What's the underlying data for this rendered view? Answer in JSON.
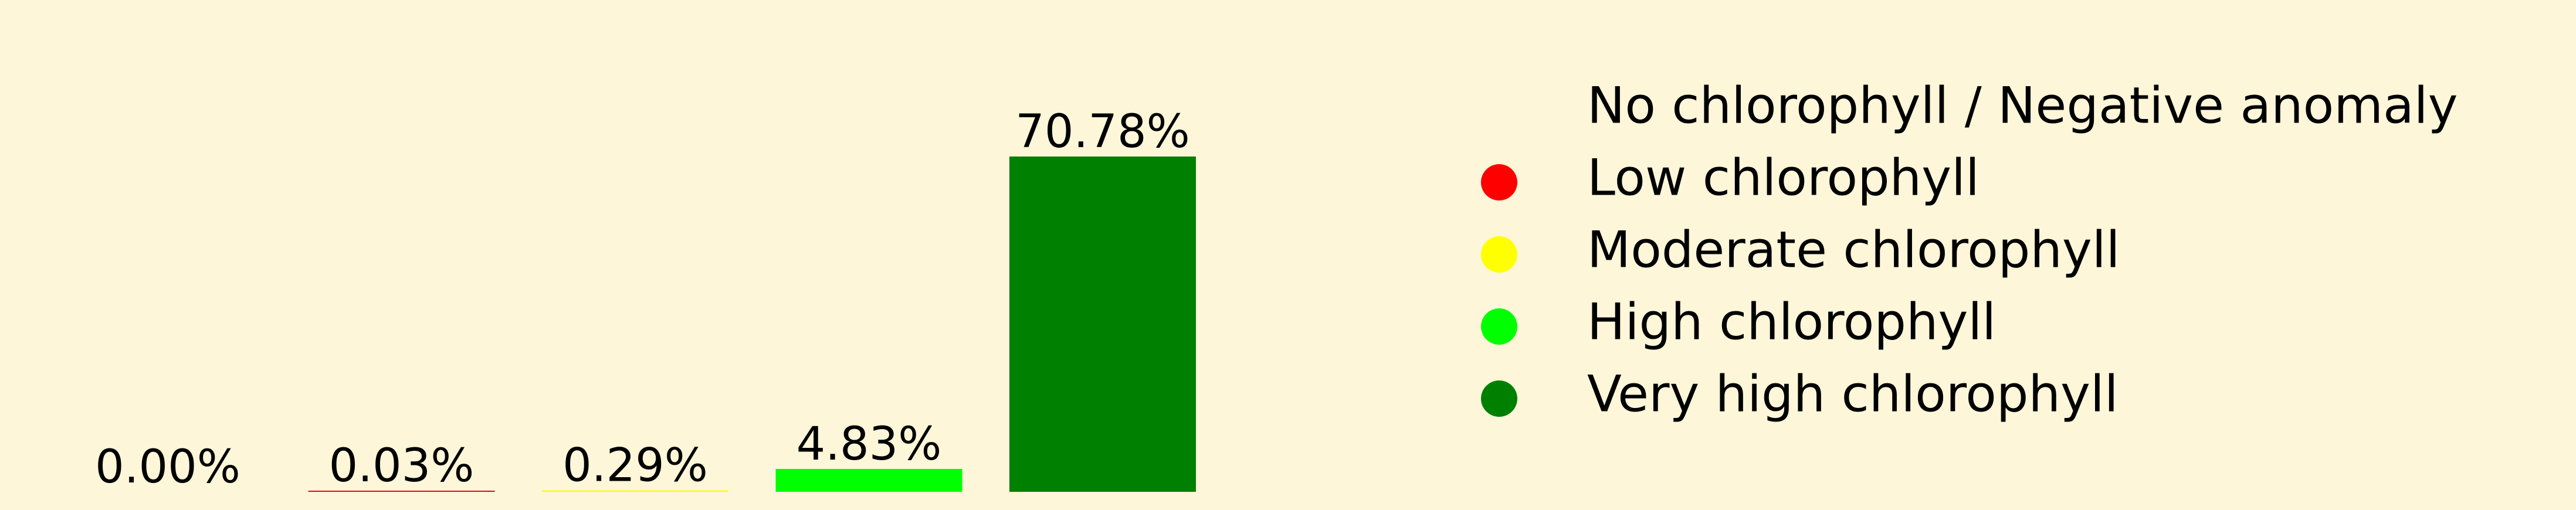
{
  "chart_data": {
    "type": "bar",
    "categories": [
      "No chlorophyll / Negative anomaly",
      "Low chlorophyll",
      "Moderate chlorophyll",
      "High chlorophyll",
      "Very high chlorophyll"
    ],
    "values": [
      0.0,
      0.03,
      0.29,
      4.83,
      70.78
    ],
    "value_labels": [
      "0.00%",
      "0.03%",
      "0.29%",
      "4.83%",
      "70.78%"
    ],
    "colors": [
      "#fdf6d8",
      "#ff0000",
      "#ffff00",
      "#00ff00",
      "#008000"
    ],
    "unit": "%",
    "ylim": [
      0,
      70.78
    ],
    "title": "",
    "xlabel": "",
    "ylabel": "",
    "grid": false,
    "axes_visible": false,
    "legend_placement": "right",
    "legend": [
      {
        "label": "No chlorophyll / Negative anomaly",
        "color": null
      },
      {
        "label": "Low chlorophyll",
        "color": "#ff0000"
      },
      {
        "label": "Moderate chlorophyll",
        "color": "#ffff00"
      },
      {
        "label": "High chlorophyll",
        "color": "#00ff00"
      },
      {
        "label": "Very high chlorophyll",
        "color": "#008000"
      }
    ]
  }
}
